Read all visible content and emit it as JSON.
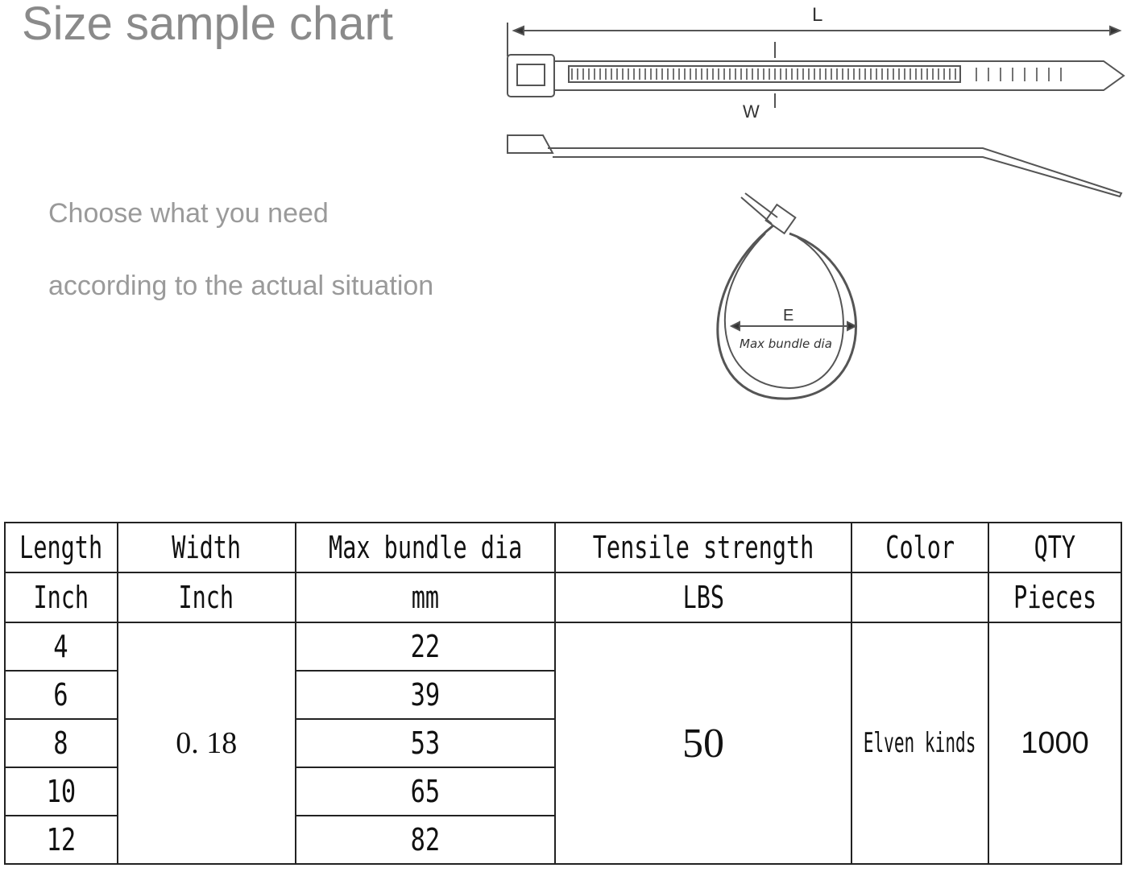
{
  "title": "Size sample chart",
  "subtitle_lines": [
    "Choose what you need",
    "according to the actual situation"
  ],
  "diagram": {
    "length_label": "L",
    "width_label": "W",
    "bundle_label": "E",
    "bundle_caption": "Max bundle dia"
  },
  "table": {
    "headers": [
      "Length",
      "Width",
      "Max bundle dia",
      "Tensile strength",
      "Color",
      "QTY"
    ],
    "units": [
      "Inch",
      "Inch",
      "mm",
      "LBS",
      "",
      "Pieces"
    ],
    "lengths": [
      "4",
      "6",
      "8",
      "10",
      "12"
    ],
    "width": "0. 18",
    "bundle_dia": [
      "22",
      "39",
      "53",
      "65",
      "82"
    ],
    "tensile": "50",
    "color": "Elven kinds",
    "qty": "1000"
  }
}
